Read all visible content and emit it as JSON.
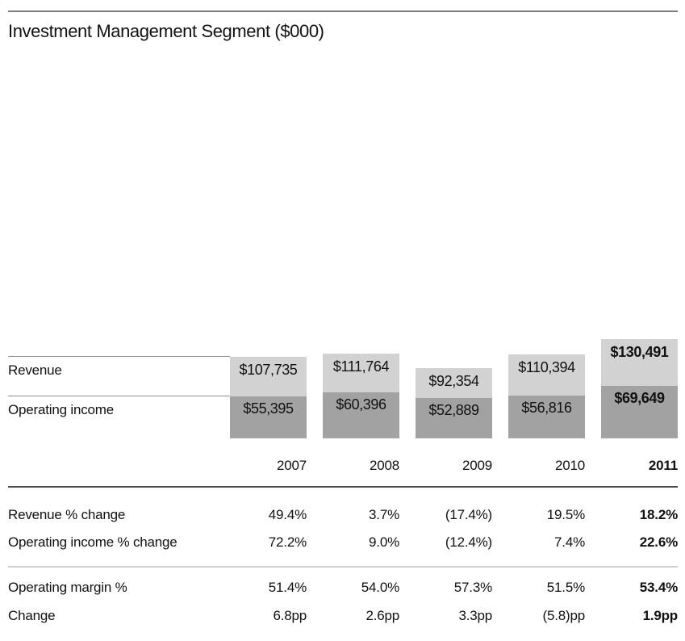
{
  "title": "Investment Management Segment ($000)",
  "emphasized_year": "2011",
  "colors": {
    "revenue_fill": "#d2d2d2",
    "operating_income_fill": "#a2a2a2",
    "top_rule": "#7d7d7d",
    "table_rule_dark": "#4d4d4d",
    "table_rule_light": "#cfcfcf",
    "leader_line": "#8f8f8f",
    "text": "#111111"
  },
  "chart_data": {
    "type": "bar",
    "title": "Investment Management Segment ($000)",
    "subtype": "stacked-value-in-bar",
    "categories": [
      "2007",
      "2008",
      "2009",
      "2010",
      "2011"
    ],
    "series": [
      {
        "name": "Revenue",
        "values": [
          107735,
          111764,
          92354,
          110394,
          130491
        ],
        "labels": [
          "$107,735",
          "$111,764",
          "$92,354",
          "$110,394",
          "$130,491"
        ]
      },
      {
        "name": "Operating income",
        "values": [
          55395,
          60396,
          52889,
          56816,
          69649
        ],
        "labels": [
          "$55,395",
          "$60,396",
          "$52,889",
          "$56,816",
          "$69,649"
        ]
      }
    ],
    "legend_position": "left-leader-lines",
    "grid": false,
    "value_axis_visible": false
  },
  "table": {
    "years": [
      "2007",
      "2008",
      "2009",
      "2010",
      "2011"
    ],
    "rows": [
      {
        "label": "Revenue % change",
        "values": [
          "49.4%",
          "3.7%",
          "(17.4%)",
          "19.5%",
          "18.2%"
        ]
      },
      {
        "label": "Operating income % change",
        "values": [
          "72.2%",
          "9.0%",
          "(12.4%)",
          "7.4%",
          "22.6%"
        ]
      },
      {
        "label": "Operating margin %",
        "values": [
          "51.4%",
          "54.0%",
          "57.3%",
          "51.5%",
          "53.4%"
        ]
      },
      {
        "label": "Change",
        "values": [
          "6.8pp",
          "2.6pp",
          "3.3pp",
          "(5.8)pp",
          "1.9pp"
        ]
      }
    ]
  }
}
